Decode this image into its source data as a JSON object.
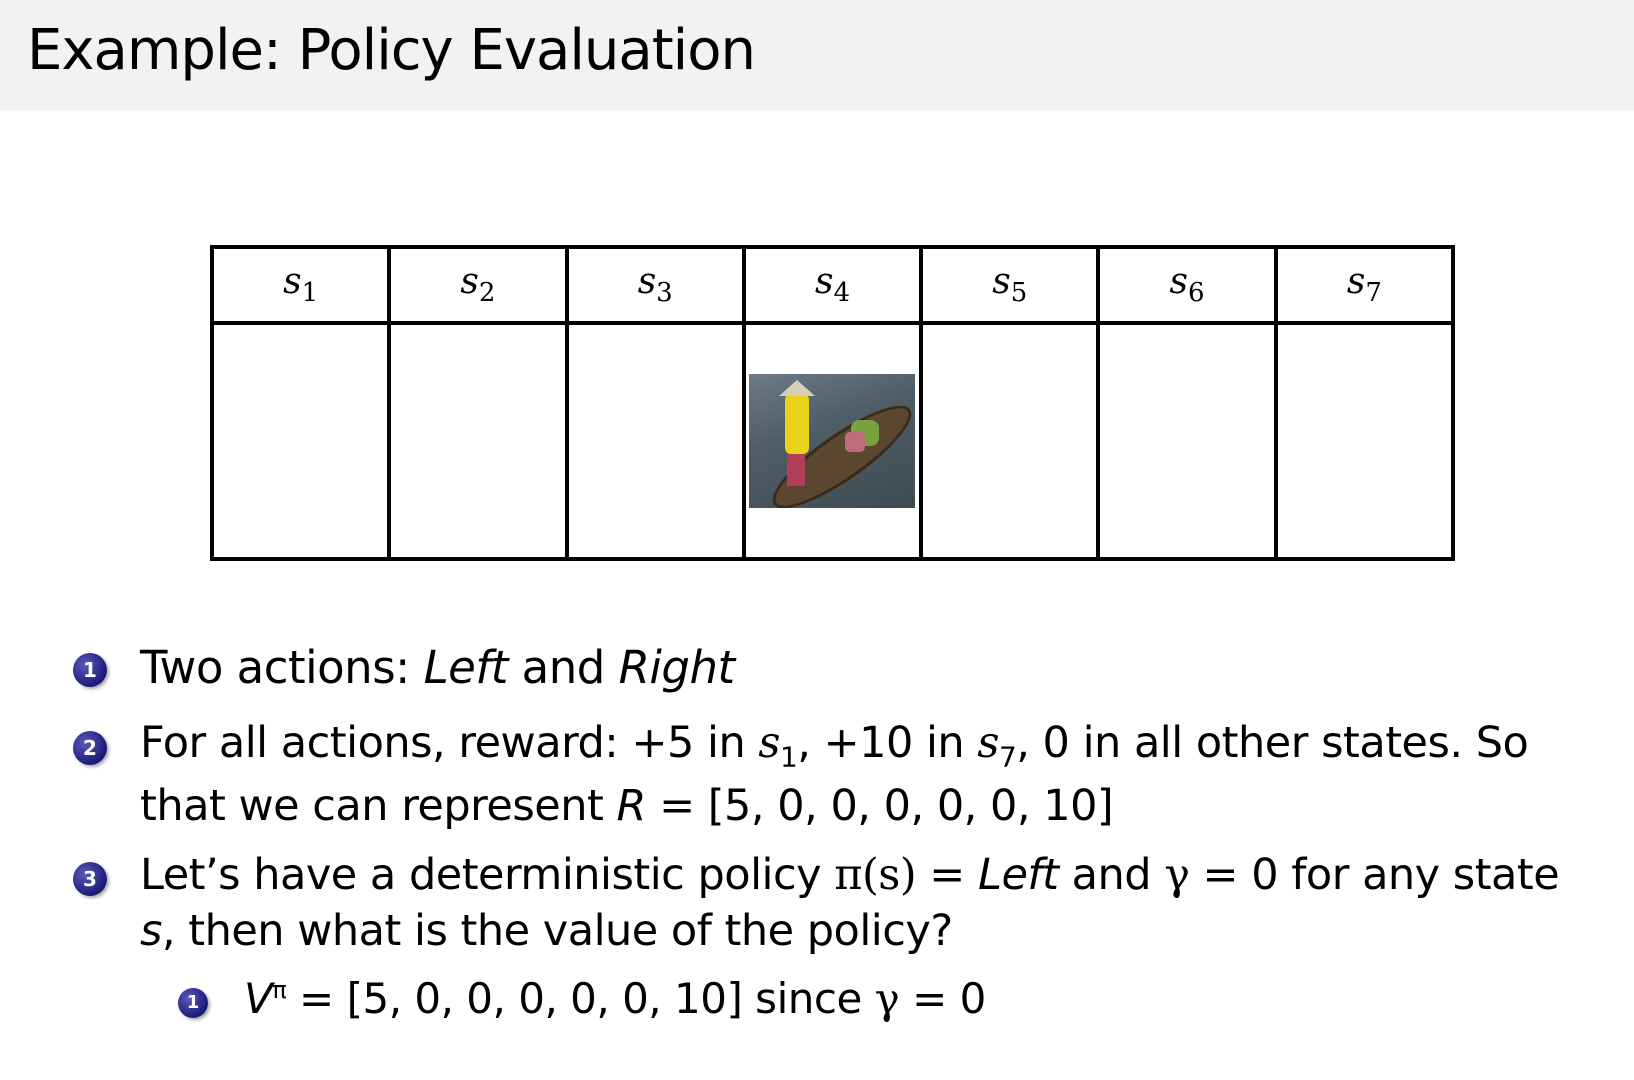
{
  "title": "Example: Policy Evaluation",
  "states": [
    "1",
    "2",
    "3",
    "4",
    "5",
    "6",
    "7"
  ],
  "state_letter": "s",
  "agent_state_index": 4,
  "items": [
    {
      "number": "1",
      "parts": [
        "Two actions: ",
        "Left",
        " and ",
        "Right"
      ]
    },
    {
      "number": "2",
      "line1": [
        "For all actions, reward: +5 in ",
        "s",
        "1",
        ", +10 in ",
        "s",
        "7",
        ", 0 in all other states. So"
      ],
      "line2": [
        "that we can represent ",
        "R",
        " = [5, 0, 0, 0, 0, 0, 10]"
      ]
    },
    {
      "number": "3",
      "line1": [
        "Let’s have a deterministic policy ",
        "π(s)",
        " = ",
        "Left",
        " and ",
        "γ",
        " = 0 for any state"
      ],
      "line2": [
        "s",
        ", then what is the value of the policy?"
      ]
    }
  ],
  "subitems": [
    {
      "number": "1",
      "parts": [
        "V",
        "π",
        " = [5, 0, 0, 0, 0, 0, 10] since ",
        "γ",
        " = 0"
      ]
    }
  ],
  "colors": {
    "title_bar": "#f2f2f2",
    "bullet": "#1a1a78"
  }
}
